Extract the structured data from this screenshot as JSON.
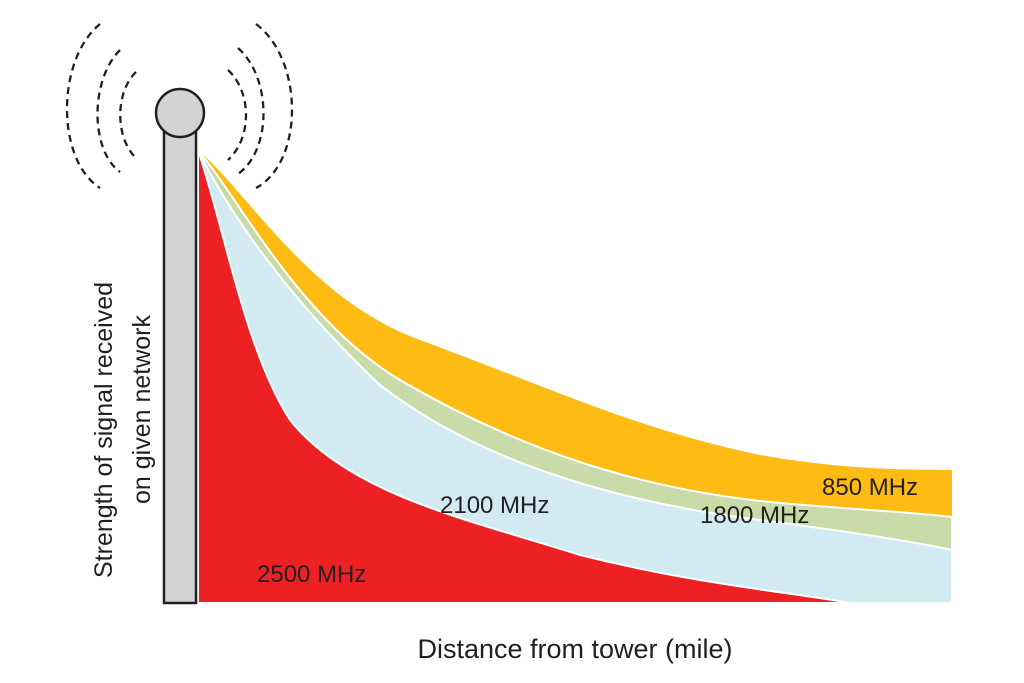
{
  "diagram": {
    "y_axis_label_line1": "Strength of signal received",
    "y_axis_label_line2": "on given network",
    "x_axis_label": "Distance from tower (mile)",
    "bands": [
      {
        "name": "850 MHz",
        "color": "#fdbb13"
      },
      {
        "name": "1800 MHz",
        "color": "#c9dba9"
      },
      {
        "name": "2100 MHz",
        "color": "#d2eaf1"
      },
      {
        "name": "2500 MHz",
        "color": "#ed2024"
      }
    ],
    "tower": {
      "mast_color": "#d2d3d5",
      "outline_color": "#231f20"
    },
    "signal_icon": "radio-waves-icon"
  }
}
